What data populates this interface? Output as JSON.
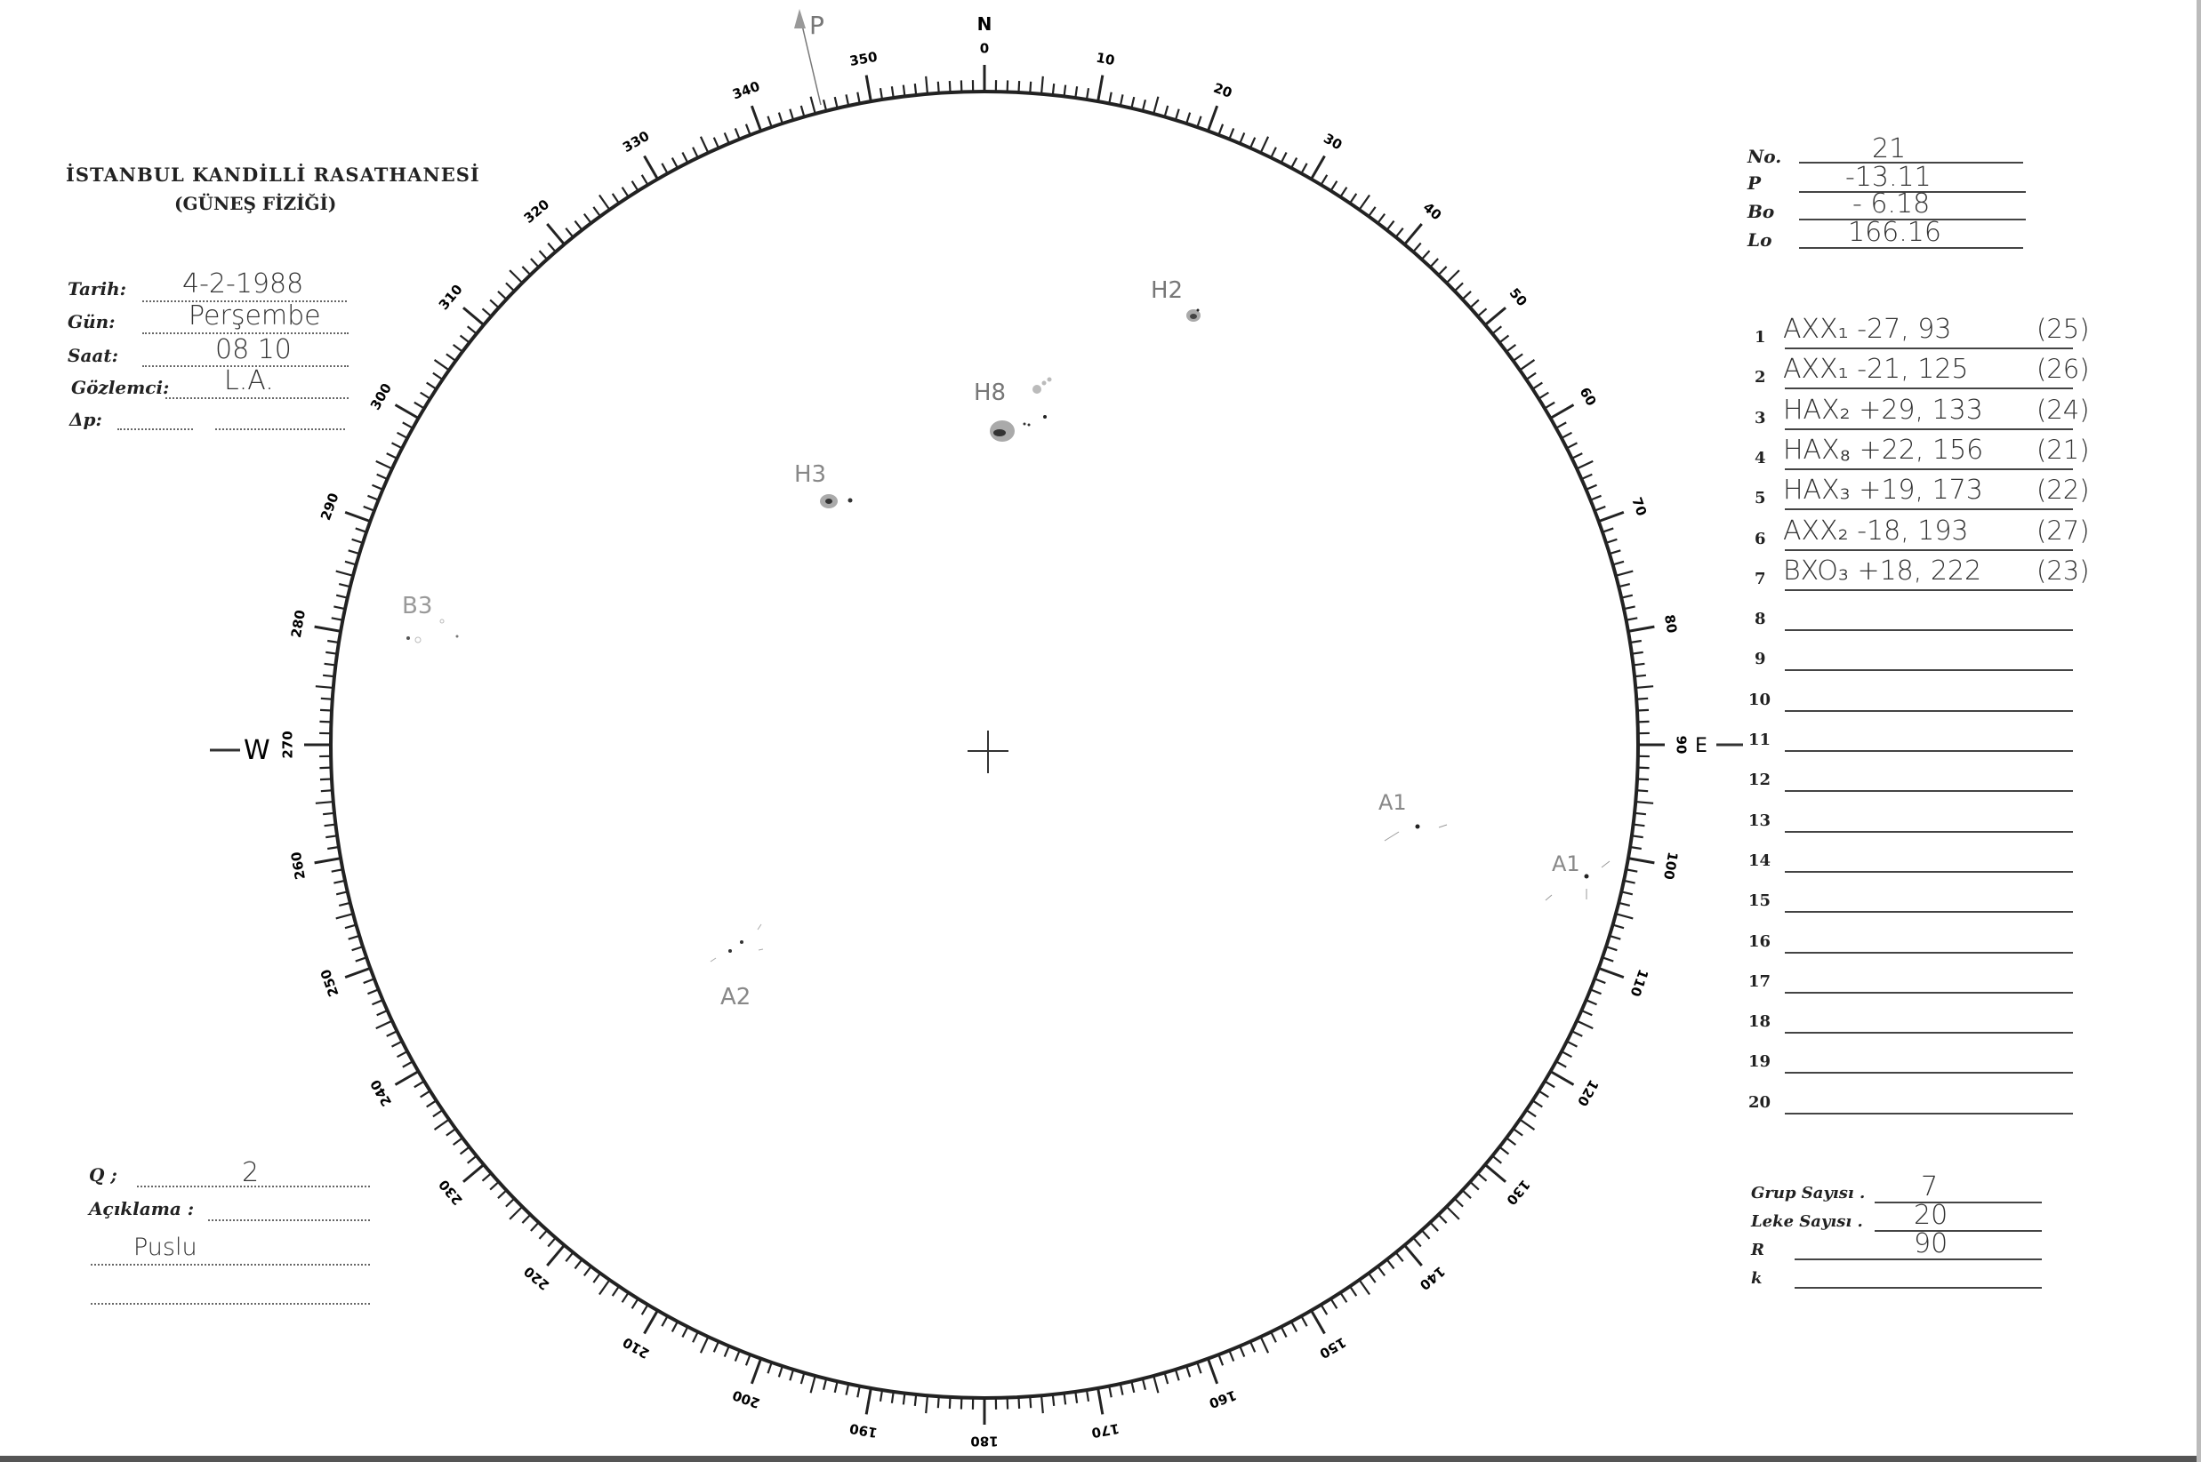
{
  "header": {
    "title": "İSTANBUL KANDİLLİ RASATHANESİ",
    "subtitle": "(GÜNEŞ FİZİĞİ)"
  },
  "observation": {
    "date_label": "Tarih:",
    "date_value": "4-2-1988",
    "day_label": "Gün:",
    "day_value": "Perşembe",
    "time_label": "Saat:",
    "time_value": "08 10",
    "observer_label": "Gözlemci:",
    "observer_value": "L.A.",
    "delta_p_label": "Δp:",
    "delta_p_value": ""
  },
  "notes": {
    "q_label": "Q ;",
    "q_value": "2",
    "remark_label": "Açıklama :",
    "remark_value": "Puslu"
  },
  "ephemeris": {
    "no_label": "No.",
    "no_value": "21",
    "p_label": "P",
    "p_value": "-13.11",
    "bo_label": "Bo",
    "bo_value": "- 6.18",
    "lo_label": "Lo",
    "lo_value": "166.16"
  },
  "groups": [
    {
      "n": "1",
      "text": "AXX₁  -27, 93",
      "id": "(25)"
    },
    {
      "n": "2",
      "text": "AXX₁  -21, 125",
      "id": "(26)"
    },
    {
      "n": "3",
      "text": "HAX₂  +29, 133",
      "id": "(24)"
    },
    {
      "n": "4",
      "text": "HAX₈  +22, 156",
      "id": "(21)"
    },
    {
      "n": "5",
      "text": "HAX₃  +19, 173",
      "id": "(22)"
    },
    {
      "n": "6",
      "text": "AXX₂  -18, 193",
      "id": "(27)"
    },
    {
      "n": "7",
      "text": "BXO₃  +18, 222",
      "id": "(23)"
    },
    {
      "n": "8",
      "text": "",
      "id": ""
    },
    {
      "n": "9",
      "text": "",
      "id": ""
    },
    {
      "n": "10",
      "text": "",
      "id": ""
    },
    {
      "n": "11",
      "text": "",
      "id": ""
    },
    {
      "n": "12",
      "text": "",
      "id": ""
    },
    {
      "n": "13",
      "text": "",
      "id": ""
    },
    {
      "n": "14",
      "text": "",
      "id": ""
    },
    {
      "n": "15",
      "text": "",
      "id": ""
    },
    {
      "n": "16",
      "text": "",
      "id": ""
    },
    {
      "n": "17",
      "text": "",
      "id": ""
    },
    {
      "n": "18",
      "text": "",
      "id": ""
    },
    {
      "n": "19",
      "text": "",
      "id": ""
    },
    {
      "n": "20",
      "text": "",
      "id": ""
    }
  ],
  "summary": {
    "group_count_label": "Grup Sayısı .",
    "group_count_value": "7",
    "spot_count_label": "Leke Sayısı .",
    "spot_count_value": "20",
    "r_label": "R",
    "r_value": "90",
    "k_label": "k",
    "k_value": ""
  },
  "disk": {
    "degree_labels": [
      "0",
      "10",
      "20",
      "30",
      "40",
      "50",
      "60",
      "70",
      "80",
      "90",
      "100",
      "110",
      "120",
      "130",
      "140",
      "150",
      "160",
      "170",
      "180",
      "190",
      "200",
      "210",
      "220",
      "230",
      "240",
      "250",
      "260",
      "270",
      "280",
      "290",
      "300",
      "310",
      "320",
      "330",
      "340",
      "350"
    ],
    "north": "N",
    "east": "E",
    "west": "W",
    "axis_label": "P",
    "sunspot_groups": [
      {
        "label": "H2"
      },
      {
        "label": "H8"
      },
      {
        "label": "H3"
      },
      {
        "label": "B3"
      },
      {
        "label": "A1"
      },
      {
        "label": "A1"
      },
      {
        "label": "A2"
      }
    ]
  },
  "colors": {
    "ink": "#222222",
    "pencil": "#777777"
  }
}
